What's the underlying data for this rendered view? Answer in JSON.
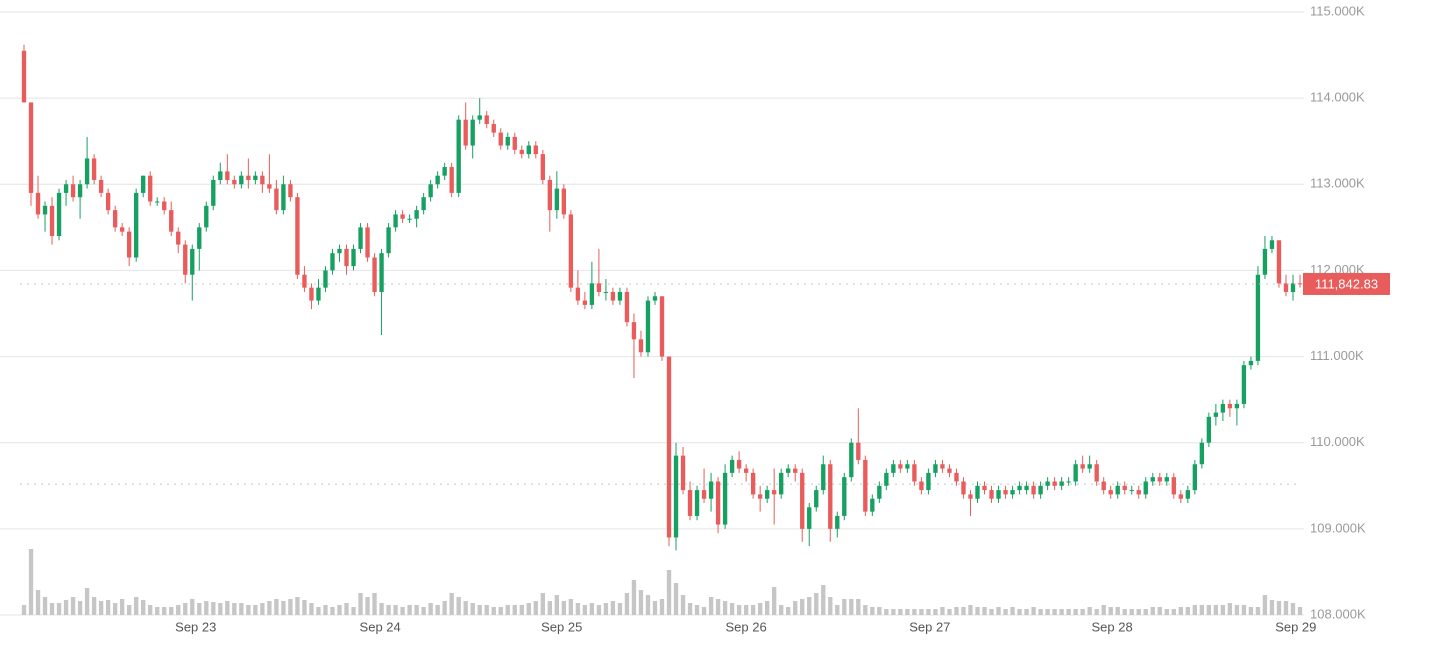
{
  "chart_data": {
    "type": "candlestick",
    "colors": {
      "up": "#16a062",
      "down": "#e85c5c",
      "volume": "#c6c6c6"
    },
    "ylim": [
      108000,
      115000
    ],
    "yticks": [
      {
        "value": 108000,
        "label": "108.000K"
      },
      {
        "value": 109000,
        "label": "109.000K"
      },
      {
        "value": 110000,
        "label": "110.000K"
      },
      {
        "value": 111000,
        "label": "111.000K"
      },
      {
        "value": 112000,
        "label": "112.000K"
      },
      {
        "value": 113000,
        "label": "113.000K"
      },
      {
        "value": 114000,
        "label": "114.000K"
      },
      {
        "value": 115000,
        "label": "115.000K"
      }
    ],
    "xlim": [
      0,
      182
    ],
    "xticks": [
      {
        "value": 24.5,
        "label": "Sep 23"
      },
      {
        "value": 50.8,
        "label": "Sep 24"
      },
      {
        "value": 76.7,
        "label": "Sep 25"
      },
      {
        "value": 103,
        "label": "Sep 26"
      },
      {
        "value": 129.2,
        "label": "Sep 27"
      },
      {
        "value": 155.2,
        "label": "Sep 28"
      },
      {
        "value": 181.4,
        "label": "Sep 29"
      }
    ],
    "grid": true,
    "current_price": {
      "value": 111842.83,
      "label": "111,842.83"
    },
    "reference_line": 109520,
    "volume_lim": [
      0,
      70
    ],
    "ohlc": [
      [
        114550,
        114620,
        113950,
        113950
      ],
      [
        113950,
        113950,
        112750,
        112900
      ],
      [
        112900,
        113100,
        112600,
        112650
      ],
      [
        112650,
        112800,
        112450,
        112750
      ],
      [
        112750,
        112850,
        112300,
        112400
      ],
      [
        112400,
        112950,
        112350,
        112900
      ],
      [
        112900,
        113050,
        112750,
        113000
      ],
      [
        113000,
        113100,
        112800,
        112850
      ],
      [
        112850,
        113050,
        112600,
        113000
      ],
      [
        113000,
        113550,
        112950,
        113300
      ],
      [
        113300,
        113350,
        113000,
        113050
      ],
      [
        113050,
        113100,
        112850,
        112900
      ],
      [
        112900,
        112950,
        112650,
        112700
      ],
      [
        112700,
        112750,
        112450,
        112500
      ],
      [
        112500,
        112550,
        112400,
        112450
      ],
      [
        112450,
        112500,
        112050,
        112150
      ],
      [
        112150,
        112950,
        112100,
        112900
      ],
      [
        112900,
        113100,
        112850,
        113100
      ],
      [
        113100,
        113150,
        112750,
        112800
      ],
      [
        112800,
        112850,
        112750,
        112800
      ],
      [
        112800,
        112850,
        112650,
        112700
      ],
      [
        112700,
        112800,
        112400,
        112450
      ],
      [
        112450,
        112500,
        112200,
        112300
      ],
      [
        112300,
        112350,
        111850,
        111950
      ],
      [
        111950,
        112300,
        111650,
        112250
      ],
      [
        112250,
        112550,
        112000,
        112500
      ],
      [
        112500,
        112800,
        112450,
        112750
      ],
      [
        112750,
        113100,
        112700,
        113050
      ],
      [
        113050,
        113250,
        113000,
        113150
      ],
      [
        113150,
        113350,
        113000,
        113050
      ],
      [
        113050,
        113100,
        112950,
        113000
      ],
      [
        113000,
        113150,
        112950,
        113100
      ],
      [
        113100,
        113300,
        112950,
        113050
      ],
      [
        113050,
        113150,
        113000,
        113100
      ],
      [
        113100,
        113150,
        112900,
        113000
      ],
      [
        113000,
        113350,
        112900,
        112950
      ],
      [
        112950,
        113050,
        112650,
        112700
      ],
      [
        112700,
        113100,
        112650,
        113000
      ],
      [
        113000,
        113050,
        112800,
        112850
      ],
      [
        112850,
        112900,
        111900,
        111950
      ],
      [
        111950,
        112050,
        111750,
        111800
      ],
      [
        111800,
        111850,
        111550,
        111650
      ],
      [
        111650,
        111900,
        111600,
        111800
      ],
      [
        111800,
        112050,
        111750,
        112000
      ],
      [
        112000,
        112250,
        111950,
        112200
      ],
      [
        112200,
        112300,
        112100,
        112250
      ],
      [
        112250,
        112300,
        111950,
        112050
      ],
      [
        112050,
        112300,
        112000,
        112250
      ],
      [
        112250,
        112550,
        112200,
        112500
      ],
      [
        112500,
        112550,
        112100,
        112150
      ],
      [
        112150,
        112200,
        111700,
        111750
      ],
      [
        111750,
        112250,
        111250,
        112200
      ],
      [
        112200,
        112550,
        112150,
        112500
      ],
      [
        112500,
        112700,
        112450,
        112650
      ],
      [
        112650,
        112700,
        112550,
        112600
      ],
      [
        112600,
        112650,
        112550,
        112600
      ],
      [
        112600,
        112750,
        112500,
        112700
      ],
      [
        112700,
        112900,
        112650,
        112850
      ],
      [
        112850,
        113050,
        112800,
        113000
      ],
      [
        113000,
        113150,
        112950,
        113100
      ],
      [
        113100,
        113250,
        113050,
        113200
      ],
      [
        113200,
        113250,
        112850,
        112900
      ],
      [
        112900,
        113800,
        112850,
        113750
      ],
      [
        113750,
        113950,
        113400,
        113450
      ],
      [
        113450,
        113800,
        113300,
        113750
      ],
      [
        113750,
        114000,
        113700,
        113800
      ],
      [
        113800,
        113850,
        113650,
        113700
      ],
      [
        113700,
        113750,
        113550,
        113600
      ],
      [
        113600,
        113650,
        113400,
        113450
      ],
      [
        113450,
        113600,
        113400,
        113550
      ],
      [
        113550,
        113600,
        113350,
        113400
      ],
      [
        113400,
        113450,
        113300,
        113350
      ],
      [
        113350,
        113500,
        113300,
        113450
      ],
      [
        113450,
        113500,
        113300,
        113350
      ],
      [
        113350,
        113400,
        113000,
        113050
      ],
      [
        113050,
        113100,
        112450,
        112700
      ],
      [
        112700,
        113150,
        112600,
        112950
      ],
      [
        112950,
        113000,
        112600,
        112650
      ],
      [
        112650,
        112700,
        111750,
        111800
      ],
      [
        111800,
        112000,
        111600,
        111650
      ],
      [
        111650,
        111750,
        111550,
        111600
      ],
      [
        111600,
        112100,
        111550,
        111850
      ],
      [
        111850,
        112250,
        111700,
        111750
      ],
      [
        111750,
        111900,
        111650,
        111750
      ],
      [
        111750,
        111800,
        111600,
        111650
      ],
      [
        111650,
        111800,
        111600,
        111750
      ],
      [
        111750,
        111800,
        111350,
        111400
      ],
      [
        111400,
        111500,
        110750,
        111200
      ],
      [
        111200,
        111300,
        111000,
        111050
      ],
      [
        111050,
        111700,
        111000,
        111650
      ],
      [
        111650,
        111750,
        111600,
        111700
      ],
      [
        111700,
        111700,
        110950,
        111000
      ],
      [
        111000,
        111000,
        108800,
        108900
      ],
      [
        108900,
        110000,
        108750,
        109850
      ],
      [
        109850,
        109950,
        109400,
        109450
      ],
      [
        109450,
        109550,
        109100,
        109150
      ],
      [
        109150,
        109500,
        109100,
        109450
      ],
      [
        109450,
        109700,
        109300,
        109350
      ],
      [
        109350,
        109650,
        109200,
        109550
      ],
      [
        109550,
        109600,
        108950,
        109050
      ],
      [
        109050,
        109750,
        109000,
        109650
      ],
      [
        109650,
        109850,
        109600,
        109800
      ],
      [
        109800,
        109900,
        109650,
        109700
      ],
      [
        109700,
        109750,
        109550,
        109650
      ],
      [
        109650,
        109700,
        109350,
        109400
      ],
      [
        109400,
        109500,
        109200,
        109350
      ],
      [
        109350,
        109500,
        109300,
        109450
      ],
      [
        109450,
        109700,
        109050,
        109400
      ],
      [
        109400,
        109700,
        109350,
        109650
      ],
      [
        109650,
        109750,
        109600,
        109700
      ],
      [
        109700,
        109750,
        109550,
        109650
      ],
      [
        109650,
        109700,
        108850,
        109000
      ],
      [
        109000,
        109300,
        108800,
        109250
      ],
      [
        109250,
        109500,
        109200,
        109450
      ],
      [
        109450,
        109850,
        109400,
        109750
      ],
      [
        109750,
        109800,
        108850,
        109000
      ],
      [
        109000,
        109200,
        108900,
        109150
      ],
      [
        109150,
        109650,
        109100,
        109600
      ],
      [
        109600,
        110050,
        109550,
        110000
      ],
      [
        110000,
        110400,
        109750,
        109800
      ],
      [
        109800,
        109850,
        109150,
        109200
      ],
      [
        109200,
        109400,
        109150,
        109350
      ],
      [
        109350,
        109550,
        109300,
        109500
      ],
      [
        109500,
        109700,
        109450,
        109650
      ],
      [
        109650,
        109800,
        109600,
        109750
      ],
      [
        109750,
        109800,
        109650,
        109700
      ],
      [
        109700,
        109800,
        109650,
        109750
      ],
      [
        109750,
        109800,
        109500,
        109550
      ],
      [
        109550,
        109600,
        109400,
        109450
      ],
      [
        109450,
        109700,
        109400,
        109650
      ],
      [
        109650,
        109800,
        109600,
        109750
      ],
      [
        109750,
        109800,
        109650,
        109700
      ],
      [
        109700,
        109750,
        109600,
        109650
      ],
      [
        109650,
        109700,
        109500,
        109550
      ],
      [
        109550,
        109600,
        109350,
        109400
      ],
      [
        109400,
        109450,
        109150,
        109350
      ],
      [
        109350,
        109550,
        109300,
        109500
      ],
      [
        109500,
        109550,
        109400,
        109450
      ],
      [
        109450,
        109500,
        109300,
        109350
      ],
      [
        109350,
        109500,
        109300,
        109450
      ],
      [
        109450,
        109500,
        109350,
        109400
      ],
      [
        109400,
        109500,
        109350,
        109450
      ],
      [
        109450,
        109550,
        109400,
        109500
      ],
      [
        109450,
        109550,
        109400,
        109500
      ],
      [
        109500,
        109550,
        109350,
        109400
      ],
      [
        109400,
        109550,
        109350,
        109500
      ],
      [
        109500,
        109600,
        109450,
        109550
      ],
      [
        109550,
        109600,
        109450,
        109500
      ],
      [
        109500,
        109600,
        109450,
        109550
      ],
      [
        109550,
        109600,
        109500,
        109550
      ],
      [
        109550,
        109800,
        109500,
        109750
      ],
      [
        109750,
        109850,
        109650,
        109700
      ],
      [
        109700,
        109850,
        109650,
        109750
      ],
      [
        109750,
        109800,
        109500,
        109550
      ],
      [
        109550,
        109600,
        109400,
        109450
      ],
      [
        109450,
        109500,
        109350,
        109400
      ],
      [
        109400,
        109550,
        109350,
        109500
      ],
      [
        109500,
        109550,
        109400,
        109450
      ],
      [
        109450,
        109500,
        109400,
        109450
      ],
      [
        109450,
        109500,
        109350,
        109400
      ],
      [
        109400,
        109600,
        109350,
        109550
      ],
      [
        109550,
        109650,
        109500,
        109600
      ],
      [
        109600,
        109650,
        109500,
        109550
      ],
      [
        109550,
        109650,
        109500,
        109600
      ],
      [
        109600,
        109650,
        109350,
        109400
      ],
      [
        109400,
        109450,
        109300,
        109350
      ],
      [
        109350,
        109500,
        109300,
        109450
      ],
      [
        109450,
        109800,
        109400,
        109750
      ],
      [
        109750,
        110050,
        109700,
        110000
      ],
      [
        110000,
        110350,
        109950,
        110300
      ],
      [
        110300,
        110450,
        110200,
        110350
      ],
      [
        110350,
        110500,
        110250,
        110450
      ],
      [
        110450,
        110500,
        110300,
        110400
      ],
      [
        110400,
        110500,
        110200,
        110450
      ],
      [
        110450,
        110950,
        110400,
        110900
      ],
      [
        110900,
        111000,
        110850,
        110950
      ],
      [
        110950,
        112050,
        110900,
        111950
      ],
      [
        111950,
        112400,
        111900,
        112250
      ],
      [
        112250,
        112400,
        112200,
        112350
      ],
      [
        112350,
        112350,
        111800,
        111850
      ],
      [
        111850,
        111950,
        111700,
        111750
      ],
      [
        111750,
        111950,
        111650,
        111850
      ],
      [
        111850,
        111950,
        111800,
        111842.83
      ]
    ],
    "volume": [
      10,
      66,
      25,
      18,
      12,
      12,
      15,
      18,
      14,
      27,
      18,
      14,
      15,
      12,
      16,
      10,
      18,
      15,
      10,
      8,
      8,
      8,
      10,
      12,
      16,
      12,
      14,
      13,
      12,
      14,
      12,
      12,
      10,
      10,
      12,
      14,
      16,
      14,
      16,
      18,
      15,
      12,
      8,
      10,
      8,
      10,
      12,
      8,
      22,
      18,
      22,
      12,
      10,
      10,
      8,
      10,
      10,
      8,
      12,
      10,
      14,
      22,
      18,
      14,
      12,
      10,
      10,
      8,
      8,
      10,
      10,
      10,
      12,
      14,
      22,
      14,
      20,
      14,
      16,
      12,
      10,
      12,
      10,
      12,
      14,
      12,
      22,
      35,
      25,
      20,
      14,
      16,
      45,
      32,
      20,
      12,
      10,
      8,
      18,
      16,
      14,
      12,
      10,
      10,
      10,
      12,
      14,
      28,
      10,
      8,
      14,
      16,
      18,
      22,
      30,
      18,
      10,
      16,
      16,
      16,
      10,
      8,
      8,
      6,
      6,
      6,
      6,
      6,
      6,
      6,
      6,
      8,
      6,
      8,
      8,
      10,
      8,
      8,
      6,
      8,
      6,
      8,
      6,
      6,
      8,
      6,
      6,
      6,
      6,
      6,
      6,
      6,
      8,
      6,
      10,
      8,
      8,
      6,
      6,
      6,
      6,
      8,
      8,
      6,
      6,
      8,
      8,
      10,
      10,
      10,
      10,
      10,
      12,
      10,
      10,
      8,
      8,
      20,
      15,
      14,
      14,
      12,
      8
    ]
  }
}
